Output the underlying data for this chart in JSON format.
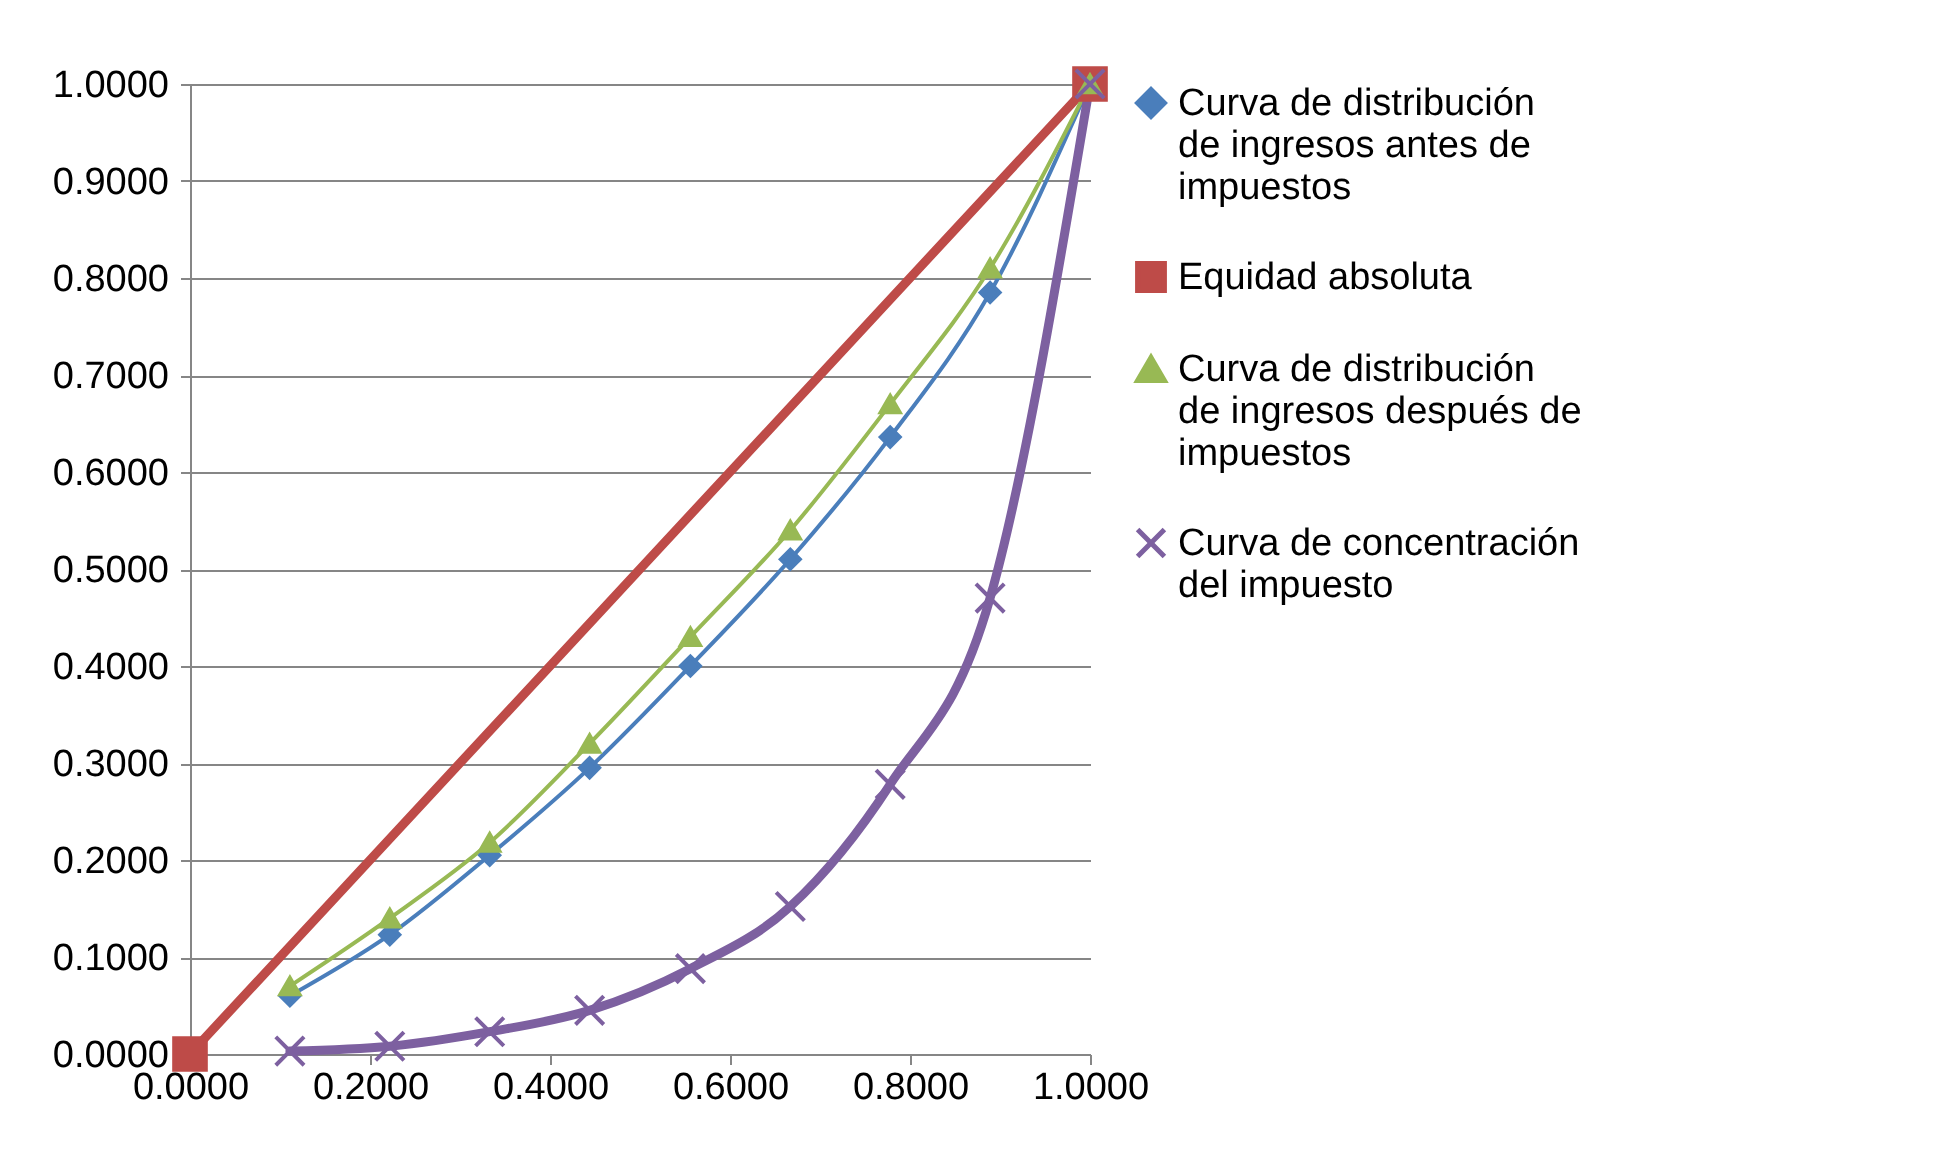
{
  "chart_data": {
    "type": "line",
    "x": [
      0.111,
      0.222,
      0.333,
      0.444,
      0.556,
      0.667,
      0.778,
      0.889,
      1.0
    ],
    "series": [
      {
        "name": "Curva de distribución de ingresos antes de impuestos",
        "color": "#4a7ebb",
        "marker": "diamond",
        "values": [
          0.06,
          0.123,
          0.205,
          0.295,
          0.4,
          0.51,
          0.636,
          0.785,
          1.0
        ]
      },
      {
        "name": "Equidad absoluta",
        "color": "#be4b48",
        "marker": "square",
        "x": [
          0.0,
          1.0
        ],
        "values": [
          0.0,
          1.0
        ]
      },
      {
        "name": "Curva de distribución de ingresos después de impuestos",
        "color": "#98b954",
        "marker": "triangle",
        "values": [
          0.07,
          0.14,
          0.218,
          0.32,
          0.43,
          0.54,
          0.67,
          0.81,
          1.0
        ]
      },
      {
        "name": "Curva de concentración del impuesto",
        "color": "#7d60a0",
        "marker": "cross",
        "values": [
          0.003,
          0.008,
          0.023,
          0.045,
          0.088,
          0.152,
          0.278,
          0.47,
          1.0
        ]
      }
    ],
    "xlim": [
      0,
      1
    ],
    "xticks": [
      {
        "value": 0,
        "label": "0.0000"
      },
      {
        "value": 0.2,
        "label": "0.2000"
      },
      {
        "value": 0.4,
        "label": "0.4000"
      },
      {
        "value": 0.6,
        "label": "0.6000"
      },
      {
        "value": 0.8,
        "label": "0.8000"
      },
      {
        "value": 1,
        "label": "1.0000"
      }
    ],
    "ylim": [
      0,
      1
    ],
    "yticks": [
      {
        "value": 0,
        "label": "0.0000"
      },
      {
        "value": 0.1,
        "label": "0.1000"
      },
      {
        "value": 0.2,
        "label": "0.2000"
      },
      {
        "value": 0.3,
        "label": "0.3000"
      },
      {
        "value": 0.4,
        "label": "0.4000"
      },
      {
        "value": 0.5,
        "label": "0.5000"
      },
      {
        "value": 0.6,
        "label": "0.6000"
      },
      {
        "value": 0.7,
        "label": "0.7000"
      },
      {
        "value": 0.8,
        "label": "0.8000"
      },
      {
        "value": 0.9,
        "label": "0.9000"
      },
      {
        "value": 1,
        "label": "1.0000"
      }
    ],
    "grid": "y",
    "legend": "right"
  }
}
